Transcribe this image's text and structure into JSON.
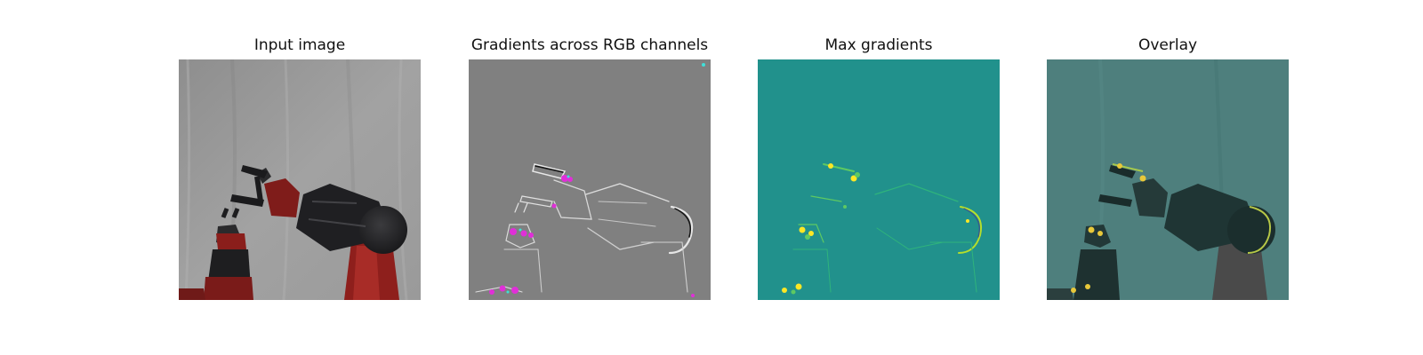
{
  "figure": {
    "panels": [
      {
        "title": "Input image"
      },
      {
        "title": "Gradients across RGB channels"
      },
      {
        "title": "Max gradients"
      },
      {
        "title": "Overlay"
      }
    ]
  }
}
